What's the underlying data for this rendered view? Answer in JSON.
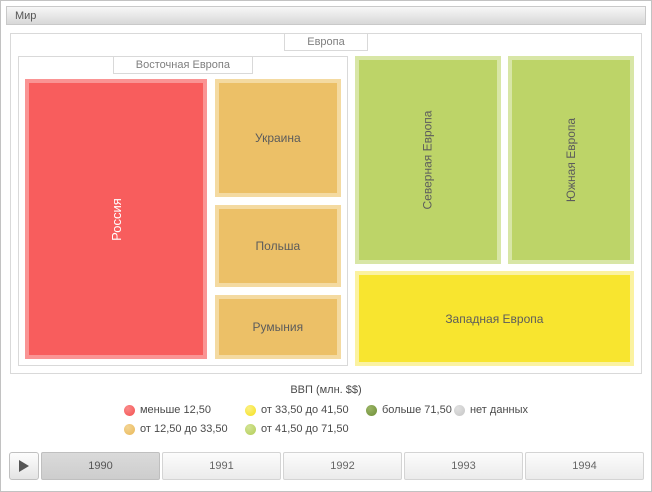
{
  "header": {
    "title": "Мир"
  },
  "treemap": {
    "root": {
      "label": "Европа"
    },
    "eastern_europe": {
      "label": "Восточная Европа"
    },
    "cells": {
      "russia": {
        "label": "Россия",
        "color": "#f85d5d"
      },
      "ukraine": {
        "label": "Украина",
        "color": "#ecc067"
      },
      "poland": {
        "label": "Польша",
        "color": "#ecc067"
      },
      "romania": {
        "label": "Румыния",
        "color": "#ecc067"
      },
      "northern_europe": {
        "label": "Северная Европа",
        "color": "#bdd468"
      },
      "southern_europe": {
        "label": "Южная Европа",
        "color": "#bdd468"
      },
      "western_europe": {
        "label": "Западная Европа",
        "color": "#f8e52f"
      }
    }
  },
  "legend": {
    "title": "ВВП (млн. $$)",
    "items": [
      {
        "label": "меньше 12,50",
        "color": "#f4504f"
      },
      {
        "label": "от 12,50 до 33,50",
        "color": "#e9b857"
      },
      {
        "label": "от 33,50 до 41,50",
        "color": "#f5e01d"
      },
      {
        "label": "от 41,50 до 71,50",
        "color": "#b3cd57"
      },
      {
        "label": "больше 71,50",
        "color": "#6f8f38"
      },
      {
        "label": "нет данных",
        "color": "#c6c6c6"
      }
    ]
  },
  "timeline": {
    "play_icon": "play-triangle",
    "years": [
      "1990",
      "1991",
      "1992",
      "1993",
      "1994"
    ],
    "selected": "1990"
  },
  "chart_data": {
    "type": "treemap",
    "title": "Мир",
    "root": "Европа",
    "value_legend_title": "ВВП (млн. $$)",
    "bins": [
      {
        "label": "меньше 12,50",
        "color": "#f4504f"
      },
      {
        "label": "от 12,50 до 33,50",
        "color": "#e9b857"
      },
      {
        "label": "от 33,50 до 41,50",
        "color": "#f5e01d"
      },
      {
        "label": "от 41,50 до 71,50",
        "color": "#b3cd57"
      },
      {
        "label": "больше 71,50",
        "color": "#6f8f38"
      },
      {
        "label": "нет данных",
        "color": "#c6c6c6"
      }
    ],
    "nodes": [
      {
        "parent": "Восточная Европа",
        "name": "Россия",
        "color_bin": "меньше 12,50",
        "area_pct_est": 31
      },
      {
        "parent": "Восточная Европа",
        "name": "Украина",
        "color_bin": "от 12,50 до 33,50",
        "area_pct_est": 10
      },
      {
        "parent": "Восточная Европа",
        "name": "Польша",
        "color_bin": "от 12,50 до 33,50",
        "area_pct_est": 7
      },
      {
        "parent": "Восточная Европа",
        "name": "Румыния",
        "color_bin": "от 12,50 до 33,50",
        "area_pct_est": 5
      },
      {
        "parent": "Европа",
        "name": "Северная Европа",
        "color_bin": "от 41,50 до 71,50",
        "area_pct_est": 18
      },
      {
        "parent": "Европа",
        "name": "Южная Европа",
        "color_bin": "от 41,50 до 71,50",
        "area_pct_est": 15
      },
      {
        "parent": "Европа",
        "name": "Западная Европа",
        "color_bin": "от 33,50 до 41,50",
        "area_pct_est": 14
      }
    ],
    "timeline_years": [
      "1990",
      "1991",
      "1992",
      "1993",
      "1994"
    ],
    "selected_year": "1990"
  }
}
